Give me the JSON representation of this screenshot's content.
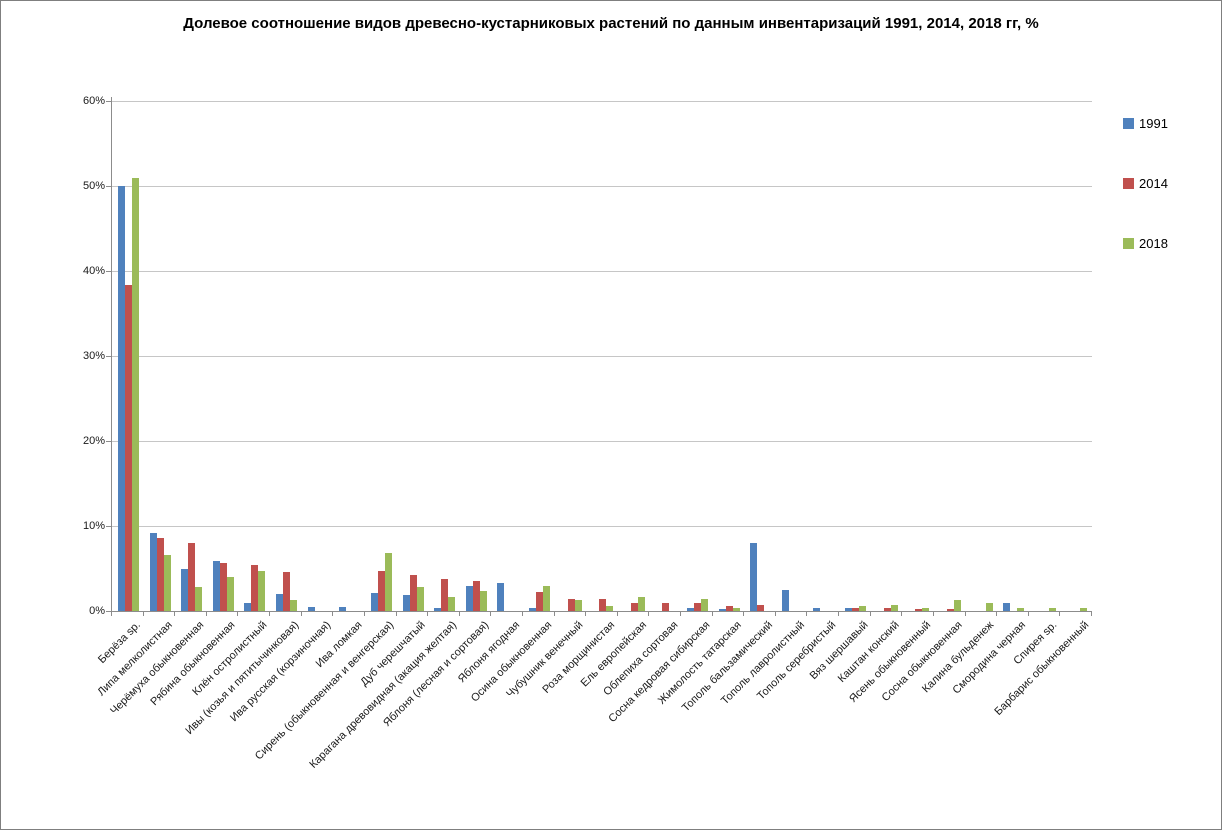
{
  "frame": {
    "background_color": "#FFFFFF",
    "border_color": "#7F7F7F"
  },
  "chart_data": {
    "type": "bar",
    "title": "Долевое соотношение видов древесно-кустарниковых растений по данным инвентаризаций 1991, 2014, 2018 гг, %",
    "xlabel": "",
    "ylabel": "",
    "grid": true,
    "legend_position": "right",
    "y_axis": {
      "min": 0,
      "max": 60,
      "tick_step": 10,
      "tick_labels": [
        "0%",
        "10%",
        "20%",
        "30%",
        "40%",
        "50%",
        "60%"
      ],
      "format": "percent"
    },
    "categories": [
      "Берёза sp.",
      "Липа мелколистная",
      "Черёмуха обыкновенная",
      "Рябина обыкновенная",
      "Клён остролистный",
      "Ивы (козья и пятитычинковая)",
      "Ива русская (корзиночная)",
      "Ива ломкая",
      "Сирень (обыкновенная и венгерская)",
      "Дуб черешчатый",
      "Карагана древовидная (акация желтая)",
      "Яблоня (лесная и сортовая)",
      "Яблоня ягодная",
      "Осина обыкновенная",
      "Чубушник венечный",
      "Роза морщинистая",
      "Ель европейская",
      "Облепиха сортовая",
      "Сосна кедровая сибирская",
      "Жимолость татарская",
      "Тополь бальзамический",
      "Тополь лавролистный",
      "Тополь серебристый",
      "Вяз шершавый",
      "Каштан конский",
      "Ясень обыкновенный",
      "Сосна обыкновенная",
      "Калина бульденеж",
      "Смородина черная",
      "Спирея sp.",
      "Барбарис обыкновенный"
    ],
    "series": [
      {
        "name": "1991",
        "color": "#4F81BD",
        "values": [
          50.0,
          9.2,
          4.9,
          5.9,
          1.0,
          2.0,
          0.5,
          0.5,
          2.1,
          1.9,
          0.4,
          3.0,
          3.3,
          0.4,
          0,
          0,
          0,
          0,
          0.3,
          0.2,
          8.0,
          2.5,
          0.3,
          0.35,
          0,
          0,
          0,
          0,
          1.0,
          0,
          0
        ]
      },
      {
        "name": "2014",
        "color": "#C0504D",
        "values": [
          38.3,
          8.6,
          8.0,
          5.6,
          5.4,
          4.6,
          0,
          0,
          4.7,
          4.2,
          3.8,
          3.5,
          0,
          2.2,
          1.4,
          1.4,
          0.9,
          0.9,
          0.9,
          0.6,
          0.7,
          0,
          0,
          0.3,
          0.4,
          0.2,
          0.2,
          0,
          0,
          0,
          0
        ]
      },
      {
        "name": "2018",
        "color": "#9BBB59",
        "values": [
          50.9,
          6.6,
          2.8,
          4.0,
          4.7,
          1.3,
          0,
          0,
          6.8,
          2.8,
          1.6,
          2.4,
          0,
          2.9,
          1.3,
          0.6,
          1.6,
          0,
          1.4,
          0.4,
          0,
          0,
          0,
          0.6,
          0.65,
          0.4,
          1.3,
          1.0,
          0.3,
          0.4,
          0.4
        ]
      }
    ]
  }
}
